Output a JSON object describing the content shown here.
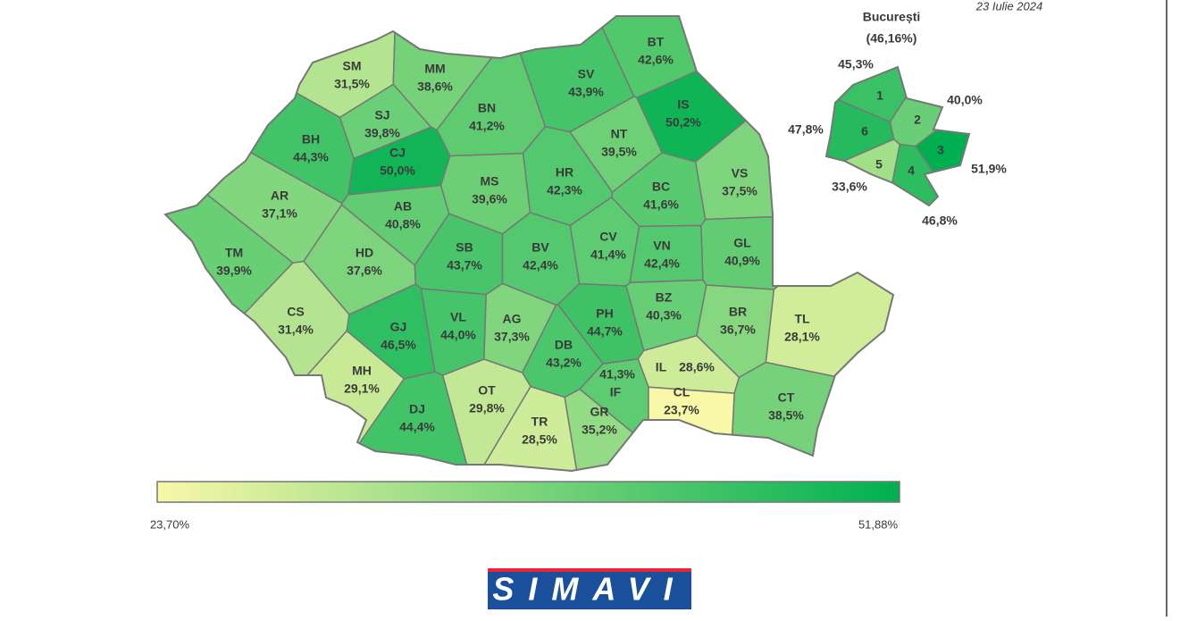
{
  "header": {
    "date": "23 Iulie 2024"
  },
  "counties": [
    {
      "code": "SM",
      "value": 31.5,
      "label": "31,5%"
    },
    {
      "code": "MM",
      "value": 38.6,
      "label": "38,6%"
    },
    {
      "code": "BT",
      "value": 42.6,
      "label": "42,6%"
    },
    {
      "code": "SV",
      "value": 43.9,
      "label": "43,9%"
    },
    {
      "code": "BH",
      "value": 44.3,
      "label": "44,3%"
    },
    {
      "code": "SJ",
      "value": 39.8,
      "label": "39,8%"
    },
    {
      "code": "BN",
      "value": 41.2,
      "label": "41,2%"
    },
    {
      "code": "IS",
      "value": 50.2,
      "label": "50,2%"
    },
    {
      "code": "NT",
      "value": 39.5,
      "label": "39,5%"
    },
    {
      "code": "CJ",
      "value": 50.0,
      "label": "50,0%"
    },
    {
      "code": "HR",
      "value": 42.3,
      "label": "42,3%"
    },
    {
      "code": "BC",
      "value": 41.6,
      "label": "41,6%"
    },
    {
      "code": "VS",
      "value": 37.5,
      "label": "37,5%"
    },
    {
      "code": "AR",
      "value": 37.1,
      "label": "37,1%"
    },
    {
      "code": "AB",
      "value": 40.8,
      "label": "40,8%"
    },
    {
      "code": "MS",
      "value": 39.6,
      "label": "39,6%"
    },
    {
      "code": "TM",
      "value": 39.9,
      "label": "39,9%"
    },
    {
      "code": "HD",
      "value": 37.6,
      "label": "37,6%"
    },
    {
      "code": "SB",
      "value": 43.7,
      "label": "43,7%"
    },
    {
      "code": "BV",
      "value": 42.4,
      "label": "42,4%"
    },
    {
      "code": "CV",
      "value": 41.4,
      "label": "41,4%"
    },
    {
      "code": "VN",
      "value": 42.4,
      "label": "42,4%"
    },
    {
      "code": "GL",
      "value": 40.9,
      "label": "40,9%"
    },
    {
      "code": "CS",
      "value": 31.4,
      "label": "31,4%"
    },
    {
      "code": "GJ",
      "value": 46.5,
      "label": "46,5%"
    },
    {
      "code": "VL",
      "value": 44.0,
      "label": "44,0%"
    },
    {
      "code": "AG",
      "value": 37.3,
      "label": "37,3%"
    },
    {
      "code": "PH",
      "value": 44.7,
      "label": "44,7%"
    },
    {
      "code": "BZ",
      "value": 40.3,
      "label": "40,3%"
    },
    {
      "code": "BR",
      "value": 36.7,
      "label": "36,7%"
    },
    {
      "code": "TL",
      "value": 28.1,
      "label": "28,1%"
    },
    {
      "code": "DB",
      "value": 43.2,
      "label": "43,2%"
    },
    {
      "code": "MH",
      "value": 29.1,
      "label": "29,1%"
    },
    {
      "code": "IF",
      "value": 41.3,
      "label": "41,3%"
    },
    {
      "code": "IL",
      "value": 28.6,
      "label": "28,6%"
    },
    {
      "code": "OT",
      "value": 29.8,
      "label": "29,8%"
    },
    {
      "code": "CL",
      "value": 23.7,
      "label": "23,7%"
    },
    {
      "code": "GR",
      "value": 35.2,
      "label": "35,2%"
    },
    {
      "code": "DJ",
      "value": 44.4,
      "label": "44,4%"
    },
    {
      "code": "TR",
      "value": 28.5,
      "label": "28,5%"
    },
    {
      "code": "CT",
      "value": 38.5,
      "label": "38,5%"
    }
  ],
  "bucharest": {
    "title": "București",
    "total": {
      "value": 46.16,
      "label": "(46,16%)"
    },
    "sectors": [
      {
        "number": "1",
        "value": 45.3,
        "label": "45,3%"
      },
      {
        "number": "2",
        "value": 40.0,
        "label": "40,0%"
      },
      {
        "number": "3",
        "value": 51.9,
        "label": "51,9%"
      },
      {
        "number": "4",
        "value": 46.8,
        "label": "46,8%"
      },
      {
        "number": "5",
        "value": 33.6,
        "label": "33,6%"
      },
      {
        "number": "6",
        "value": 47.8,
        "label": "47,8%"
      }
    ]
  },
  "legend": {
    "min": {
      "value": 23.7,
      "label": "23,70%"
    },
    "max": {
      "value": 51.88,
      "label": "51,88%"
    }
  },
  "logo": "SIMAVI"
}
